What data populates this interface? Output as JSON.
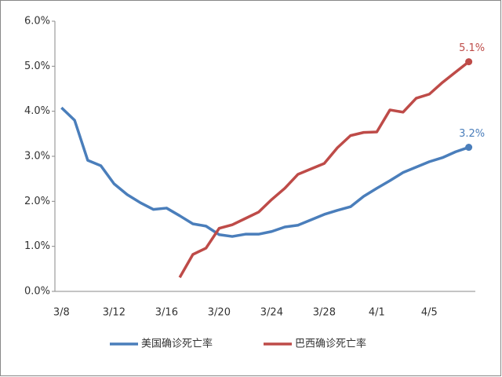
{
  "chart_data": {
    "type": "line",
    "categories": [
      "3/8",
      null,
      null,
      null,
      "3/12",
      null,
      null,
      null,
      "3/16",
      null,
      null,
      null,
      "3/20",
      null,
      null,
      null,
      "3/24",
      null,
      null,
      null,
      "3/28",
      null,
      null,
      null,
      "4/1",
      null,
      null,
      null,
      "4/5",
      null,
      null,
      null
    ],
    "ylim": [
      0,
      6
    ],
    "yticks": [
      {
        "value": 0,
        "label": "0.0%"
      },
      {
        "value": 1,
        "label": "1.0%"
      },
      {
        "value": 2,
        "label": "2.0%"
      },
      {
        "value": 3,
        "label": "3.0%"
      },
      {
        "value": 4,
        "label": "4.0%"
      },
      {
        "value": 5,
        "label": "5.0%"
      },
      {
        "value": 6,
        "label": "6.0%"
      }
    ],
    "legend": "bottom",
    "series": [
      {
        "name": "美国确诊死亡率",
        "color": "#4a7ebb",
        "values": [
          4.08,
          3.8,
          2.91,
          2.79,
          2.39,
          2.15,
          1.97,
          1.82,
          1.85,
          1.68,
          1.5,
          1.45,
          1.26,
          1.22,
          1.27,
          1.27,
          1.33,
          1.43,
          1.47,
          1.59,
          1.71,
          1.8,
          1.88,
          2.11,
          2.29,
          2.46,
          2.64,
          2.76,
          2.88,
          2.97,
          3.1,
          3.2
        ],
        "value_labels": [
          null,
          null,
          null,
          null,
          null,
          null,
          null,
          null,
          null,
          null,
          null,
          null,
          null,
          null,
          null,
          null,
          null,
          null,
          null,
          null,
          null,
          null,
          null,
          null,
          null,
          null,
          null,
          null,
          null,
          null,
          null,
          "3.2%"
        ]
      },
      {
        "name": "巴西确诊死亡率",
        "color": "#be4b48",
        "values": [
          null,
          null,
          null,
          null,
          null,
          null,
          null,
          null,
          null,
          0.31,
          0.82,
          0.96,
          1.4,
          1.48,
          1.62,
          1.76,
          2.04,
          2.29,
          2.6,
          2.72,
          2.84,
          3.19,
          3.46,
          3.53,
          3.54,
          4.03,
          3.98,
          4.29,
          4.38,
          4.64,
          4.87,
          5.1
        ],
        "value_labels": [
          null,
          null,
          null,
          null,
          null,
          null,
          null,
          null,
          null,
          null,
          null,
          null,
          null,
          null,
          null,
          null,
          null,
          null,
          null,
          null,
          null,
          null,
          null,
          null,
          null,
          null,
          null,
          null,
          null,
          null,
          null,
          "5.1%"
        ]
      }
    ]
  }
}
